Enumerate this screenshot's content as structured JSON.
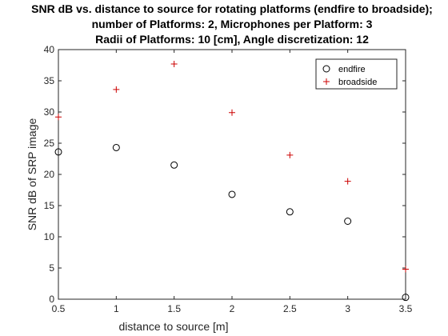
{
  "chart_data": {
    "type": "scatter",
    "title": [
      "SNR dB vs. distance to source for rotating platforms (endfire to broadside);",
      "number of Platforms: 2, Microphones per Platform: 3",
      "Radii of Platforms: 10 [cm], Angle discretization: 12"
    ],
    "xlabel": "distance to source [m]",
    "ylabel": "SNR dB of SRP image",
    "xlim": [
      0.5,
      3.5
    ],
    "ylim": [
      0,
      40
    ],
    "xticks": [
      0.5,
      1,
      1.5,
      2,
      2.5,
      3,
      3.5
    ],
    "yticks": [
      0,
      5,
      10,
      15,
      20,
      25,
      30,
      35,
      40
    ],
    "grid": false,
    "legend_position": "top-right",
    "series": [
      {
        "name": "endfire",
        "marker": "circle",
        "color": "#000000",
        "x": [
          0.5,
          1,
          1.5,
          2,
          2.5,
          3,
          3.5
        ],
        "y": [
          23.6,
          24.3,
          21.5,
          16.8,
          14.0,
          12.5,
          0.3
        ]
      },
      {
        "name": "broadside",
        "marker": "plus",
        "color": "#cc0000",
        "x": [
          0.5,
          1,
          1.5,
          2,
          2.5,
          3,
          3.5
        ],
        "y": [
          29.2,
          33.6,
          37.7,
          29.9,
          23.1,
          18.9,
          4.8
        ]
      }
    ]
  }
}
